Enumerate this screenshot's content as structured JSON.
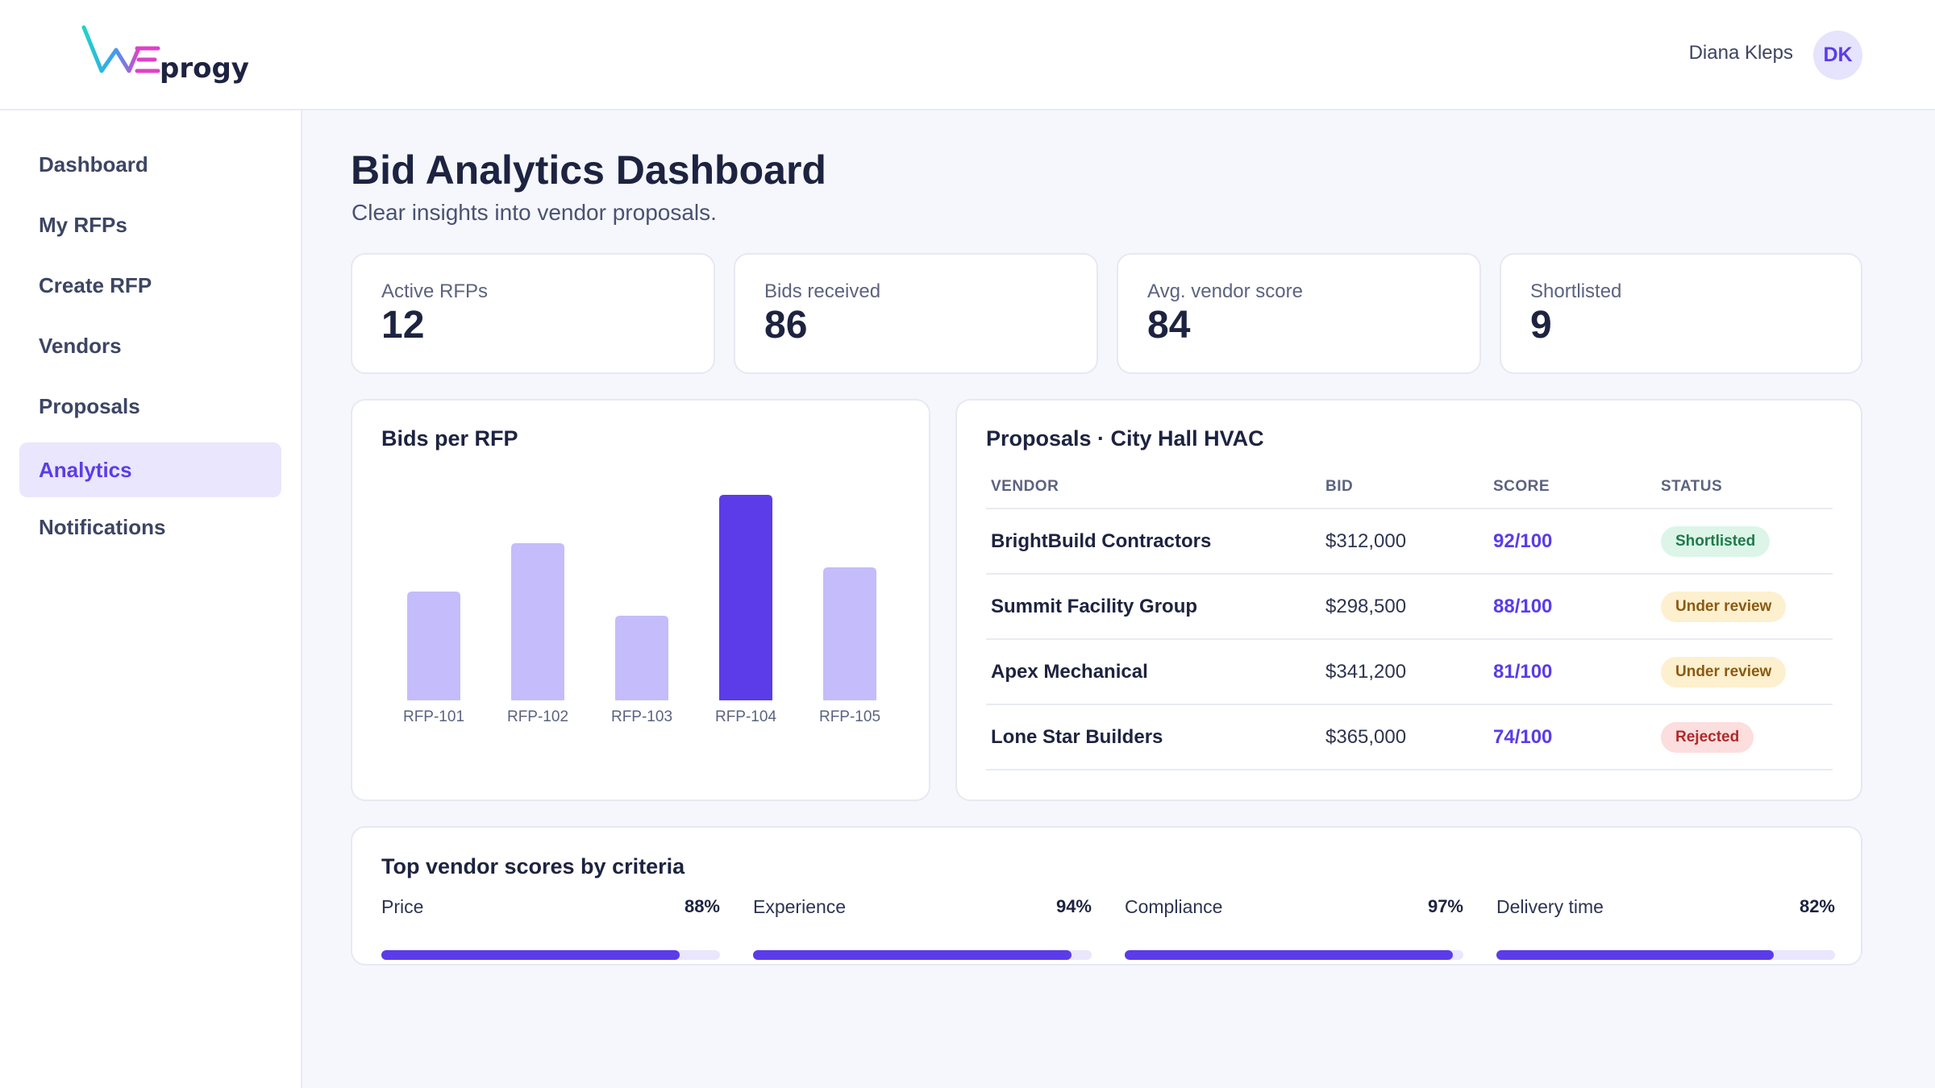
{
  "header": {
    "logo_text": "WEprogy",
    "user_name": "Diana Kleps",
    "avatar_initials": "DK"
  },
  "sidebar": {
    "items": [
      {
        "label": "Dashboard",
        "active": false
      },
      {
        "label": "My RFPs",
        "active": false
      },
      {
        "label": "Create RFP",
        "active": false
      },
      {
        "label": "Vendors",
        "active": false
      },
      {
        "label": "Proposals",
        "active": false
      },
      {
        "label": "Analytics",
        "active": true
      },
      {
        "label": "Notifications",
        "active": false
      }
    ]
  },
  "page": {
    "title": "Bid Analytics Dashboard",
    "subtitle": "Clear insights into vendor proposals."
  },
  "stats": [
    {
      "label": "Active RFPs",
      "value": "12"
    },
    {
      "label": "Bids received",
      "value": "86"
    },
    {
      "label": "Avg. vendor score",
      "value": "84"
    },
    {
      "label": "Shortlisted",
      "value": "9"
    }
  ],
  "chart_title": "Bids per RFP",
  "chart_data": {
    "type": "bar",
    "title": "Bids per RFP",
    "categories": [
      "RFP-101",
      "RFP-102",
      "RFP-103",
      "RFP-104",
      "RFP-105"
    ],
    "values": [
      9,
      13,
      7,
      17,
      11
    ],
    "highlight_index": 3,
    "colors": {
      "default": "#c5bcfb",
      "highlight": "#5b3ce8"
    },
    "ylim": [
      0,
      17
    ],
    "xlabel": "",
    "ylabel": "",
    "grid": false
  },
  "proposals": {
    "title": "Proposals · City Hall HVAC",
    "columns": [
      "VENDOR",
      "BID",
      "SCORE",
      "STATUS"
    ],
    "rows": [
      {
        "vendor": "BrightBuild Contractors",
        "bid": "$312,000",
        "score": "92/100",
        "status": "Shortlisted",
        "status_color": "green"
      },
      {
        "vendor": "Summit Facility Group",
        "bid": "$298,500",
        "score": "88/100",
        "status": "Under review",
        "status_color": "amber"
      },
      {
        "vendor": "Apex Mechanical",
        "bid": "$341,200",
        "score": "81/100",
        "status": "Under review",
        "status_color": "amber"
      },
      {
        "vendor": "Lone Star Builders",
        "bid": "$365,000",
        "score": "74/100",
        "status": "Rejected",
        "status_color": "red"
      }
    ]
  },
  "criteria": {
    "title": "Top vendor scores by criteria",
    "items": [
      {
        "label": "Price",
        "pct_text": "88%",
        "value": 0.88
      },
      {
        "label": "Experience",
        "pct_text": "94%",
        "value": 0.94
      },
      {
        "label": "Compliance",
        "pct_text": "97%",
        "value": 0.97
      },
      {
        "label": "Delivery time",
        "pct_text": "82%",
        "value": 0.82
      }
    ]
  },
  "colors": {
    "accent": "#5b3ce8",
    "accent_light": "#e9e6fd"
  }
}
